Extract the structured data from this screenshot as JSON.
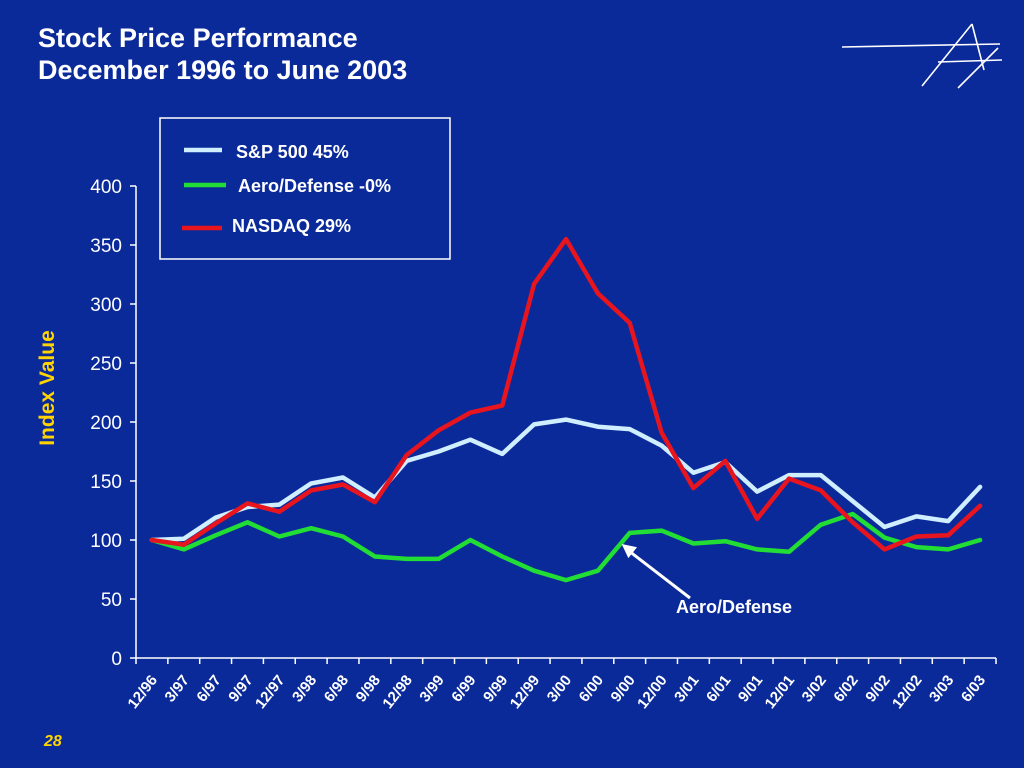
{
  "slide": {
    "title_line1": "Stock Price Performance",
    "title_line2": "December 1996 to June 2003",
    "page_number": "28"
  },
  "colors": {
    "background": "#0b2a9a",
    "sp500": "#cfeeff",
    "aero_defense": "#22dd33",
    "nasdaq": "#e8141e",
    "ylabel": "#ffd400"
  },
  "chart_data": {
    "type": "line",
    "title": "",
    "xlabel": "",
    "ylabel": "Index Value",
    "ylim": [
      0,
      400
    ],
    "yticks": [
      0,
      50,
      100,
      150,
      200,
      250,
      300,
      350,
      400
    ],
    "grid": false,
    "legend_position": "top-left",
    "categories": [
      "12/96",
      "3/97",
      "6/97",
      "9/97",
      "12/97",
      "3/98",
      "6/98",
      "9/98",
      "12/98",
      "3/99",
      "6/99",
      "9/99",
      "12/99",
      "3/00",
      "6/00",
      "9/00",
      "12/00",
      "3/01",
      "6/01",
      "9/01",
      "12/01",
      "3/02",
      "6/02",
      "9/02",
      "12/02",
      "3/03",
      "6/03"
    ],
    "series": [
      {
        "name": "S&P 500 45%",
        "color": "#cfeeff",
        "values": [
          100,
          101,
          119,
          128,
          130,
          148,
          153,
          136,
          167,
          175,
          185,
          173,
          198,
          202,
          196,
          194,
          180,
          157,
          166,
          141,
          155,
          155,
          133,
          111,
          120,
          116,
          145
        ]
      },
      {
        "name": "Aero/Defense -0%",
        "color": "#22dd33",
        "values": [
          100,
          92,
          104,
          115,
          103,
          110,
          103,
          86,
          84,
          84,
          100,
          86,
          74,
          66,
          74,
          106,
          108,
          97,
          99,
          92,
          90,
          113,
          122,
          102,
          94,
          92,
          100
        ]
      },
      {
        "name": "NASDAQ 29%",
        "color": "#e8141e",
        "values": [
          100,
          96,
          114,
          131,
          124,
          142,
          147,
          132,
          172,
          193,
          208,
          214,
          317,
          355,
          309,
          284,
          191,
          144,
          167,
          118,
          152,
          142,
          115,
          92,
          103,
          104,
          129
        ]
      }
    ],
    "annotations": [
      {
        "text": "Aero/Defense",
        "points_to_category": "9/00",
        "points_to_value": 100
      }
    ]
  }
}
